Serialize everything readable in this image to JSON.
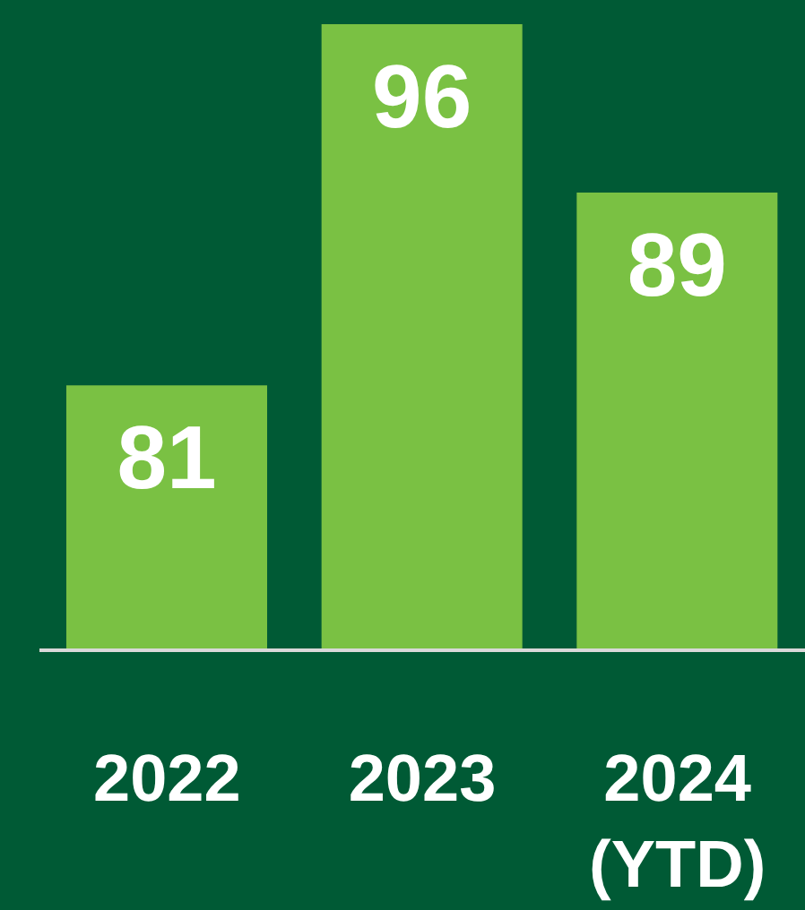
{
  "chart_data": {
    "type": "bar",
    "categories": [
      "2022",
      "2023",
      "2024 (YTD)"
    ],
    "values": [
      81,
      96,
      89
    ],
    "color": "#7ac143",
    "data_labels": true,
    "ylim": [
      70,
      97
    ]
  }
}
